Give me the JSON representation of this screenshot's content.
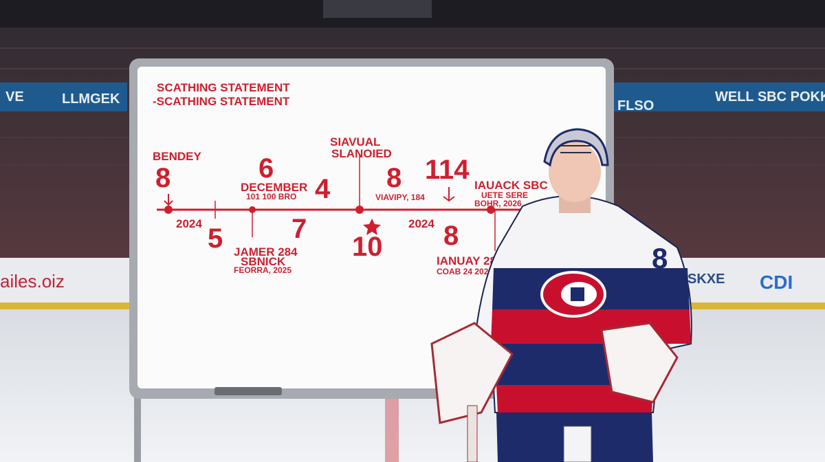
{
  "whiteboard": {
    "heading": [
      "SCATHING STATEMENT",
      "-SCATHING STATEMENT"
    ],
    "labels": [
      "BENDEY",
      "8",
      "2024",
      "5",
      "6",
      "DECEMBER",
      "101 100 BRO",
      "4",
      "7",
      "JAMER 284",
      "SBNICK",
      "FEORRA, 2025",
      "SIAVUAL",
      "SLANOIED",
      "10",
      "8",
      "VIAVIPY, 184",
      "114",
      "2024",
      "8",
      "IAUACK SBC",
      "UETE SERE",
      "BOHR, 2026",
      "IANUAY 288",
      "COAB 24 2026"
    ]
  },
  "signage": [
    "VE",
    "LLMGEK",
    "FLSO",
    "WELL SBC POKKED",
    "ailes.oiz",
    "SKXE",
    "CDI"
  ],
  "player": {
    "number": "8"
  }
}
